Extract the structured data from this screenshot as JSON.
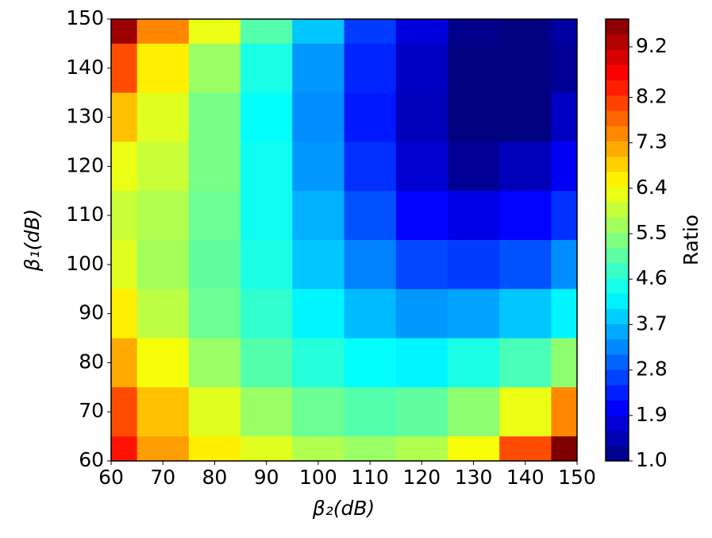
{
  "chart_data": {
    "type": "contour",
    "x_label": "β₂(dB)",
    "y_label": "β₁(dB)",
    "colorbar_label": "Ratio",
    "colormap": "jet",
    "x": [
      60,
      70,
      80,
      90,
      100,
      110,
      120,
      130,
      140,
      150
    ],
    "y": [
      150,
      140,
      130,
      120,
      110,
      100,
      90,
      80,
      70,
      60
    ],
    "z": [
      [
        9.5,
        7.5,
        6.3,
        5.0,
        3.8,
        2.6,
        1.8,
        1.1,
        1.0,
        1.3
      ],
      [
        8.0,
        6.6,
        5.6,
        4.5,
        3.4,
        2.4,
        1.6,
        1.0,
        1.0,
        1.2
      ],
      [
        7.0,
        6.2,
        5.3,
        4.3,
        3.3,
        2.3,
        1.5,
        1.0,
        1.0,
        1.6
      ],
      [
        6.3,
        6.0,
        5.3,
        4.4,
        3.4,
        2.5,
        1.7,
        1.2,
        1.5,
        2.0
      ],
      [
        6.0,
        5.8,
        5.2,
        4.4,
        3.6,
        2.8,
        2.1,
        1.9,
        2.1,
        2.5
      ],
      [
        6.2,
        5.7,
        5.1,
        4.5,
        3.8,
        3.2,
        2.7,
        2.6,
        2.8,
        3.3
      ],
      [
        6.6,
        5.9,
        5.2,
        4.7,
        4.2,
        3.7,
        3.4,
        3.5,
        3.8,
        4.2
      ],
      [
        7.2,
        6.4,
        5.6,
        5.0,
        4.6,
        4.3,
        4.2,
        4.5,
        4.9,
        5.5
      ],
      [
        8.0,
        7.0,
        6.2,
        5.6,
        5.2,
        5.0,
        5.1,
        5.5,
        6.3,
        7.5
      ],
      [
        8.5,
        7.3,
        6.6,
        6.2,
        5.8,
        5.6,
        5.8,
        6.4,
        8.0,
        10.0
      ]
    ],
    "xlim": [
      60,
      150
    ],
    "ylim": [
      60,
      150
    ],
    "xticks": [
      60,
      70,
      80,
      90,
      100,
      110,
      120,
      130,
      140,
      150
    ],
    "yticks": [
      60,
      70,
      80,
      90,
      100,
      110,
      120,
      130,
      140,
      150
    ],
    "clim": [
      1,
      9.75
    ],
    "cticks": [
      {
        "value": 1,
        "label": "1.0"
      },
      1.9,
      2.8,
      3.7,
      4.6,
      5.5,
      6.4,
      7.3,
      8.2,
      9.2
    ]
  }
}
